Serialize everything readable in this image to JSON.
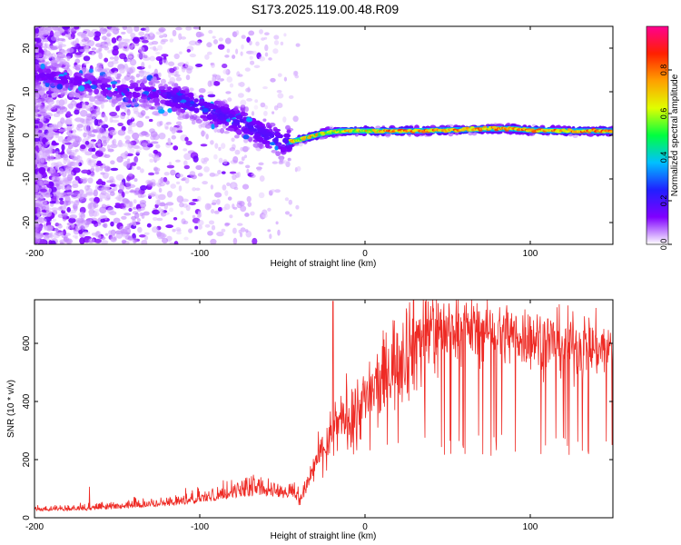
{
  "figure": {
    "title": "S173.2025.119.00.48.R09"
  },
  "chart_data": [
    {
      "type": "heatmap",
      "xlabel": "Height of straight line (km)",
      "ylabel": "Frequency (Hz)",
      "xlim": [
        -200,
        150
      ],
      "ylim": [
        -25,
        25
      ],
      "xticks": [
        -200,
        -100,
        0,
        100
      ],
      "yticks": [
        -20,
        -10,
        0,
        10,
        20
      ],
      "colorbar": {
        "label": "Normalized spectral amplitude",
        "range": [
          0,
          1
        ],
        "ticks": [
          0.0,
          0.2,
          0.4,
          0.6,
          0.8
        ],
        "colors": [
          "#ffffff",
          "#8000ff",
          "#2020ff",
          "#00c0ff",
          "#00ff40",
          "#e0ff00",
          "#ffa000",
          "#ff2000",
          "#ff0090"
        ]
      },
      "ridge": {
        "x": [
          -200,
          -175,
          -150,
          -125,
          -110,
          -90,
          -75,
          -60,
          -50,
          -45,
          -35,
          -25,
          -15,
          0,
          25,
          50,
          75,
          90,
          100,
          125,
          150
        ],
        "y": [
          14,
          12.5,
          10.5,
          9.5,
          8,
          5,
          3,
          0,
          -1.5,
          -1.5,
          -0.5,
          0.5,
          1,
          1,
          1,
          1.2,
          1.5,
          1.5,
          1.2,
          1,
          1
        ]
      },
      "grid": false,
      "legend": "right"
    },
    {
      "type": "line",
      "xlabel": "Height of straight line (km)",
      "ylabel": "SNR (10 * v/v)",
      "xlim": [
        -200,
        150
      ],
      "ylim": [
        0,
        750
      ],
      "xticks": [
        -200,
        -100,
        0,
        100
      ],
      "yticks": [
        0,
        200,
        400,
        600
      ],
      "color": "#ee2a24",
      "series_shape": {
        "x": [
          -200,
          -170,
          -150,
          -120,
          -100,
          -85,
          -75,
          -65,
          -55,
          -40,
          -35,
          -30,
          -20,
          -10,
          0,
          10,
          20,
          30,
          40,
          50,
          60,
          80,
          100,
          120,
          150
        ],
        "y": [
          22,
          25,
          30,
          40,
          50,
          65,
          70,
          75,
          70,
          60,
          110,
          190,
          290,
          360,
          400,
          470,
          560,
          610,
          650,
          660,
          655,
          640,
          620,
          600,
          580
        ]
      },
      "grid": false,
      "legend": "none"
    }
  ]
}
